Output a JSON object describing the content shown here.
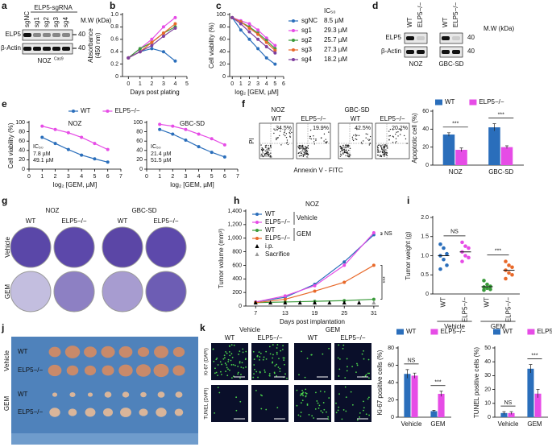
{
  "chart_data": [
    {
      "type": "line",
      "xlabel": "Days post plating",
      "ylabel": [
        "Absorbance",
        "(450 nm)"
      ],
      "x": [
        0,
        1,
        2,
        3,
        4
      ],
      "xlim": [
        -0.5,
        5
      ],
      "xticks": [
        0,
        1,
        2,
        3,
        4,
        5
      ],
      "ylim": [
        0,
        1
      ],
      "yticks": [
        0,
        0.2,
        0.4,
        0.6,
        0.8,
        {
          "value": 1,
          "label": "1.0"
        }
      ],
      "series": [
        {
          "color": "#2a6ebb",
          "values": [
            0.3,
            0.4,
            0.45,
            0.4,
            0.25
          ]
        },
        {
          "color": "#e64ce6",
          "values": [
            0.3,
            0.45,
            0.6,
            0.8,
            0.95
          ]
        },
        {
          "color": "#3a9a3a",
          "values": [
            0.3,
            0.45,
            0.55,
            0.7,
            0.8
          ]
        },
        {
          "color": "#e8692a",
          "values": [
            0.3,
            0.4,
            0.55,
            0.7,
            0.85
          ]
        },
        {
          "color": "#7e3f9e",
          "values": [
            0.3,
            0.4,
            0.5,
            0.65,
            0.78
          ]
        }
      ]
    },
    {
      "type": "line",
      "xlabel": "log₂ [GEM, µM]",
      "ylabel": [
        "Cell viability (%)"
      ],
      "legend_title": "IC₅₀",
      "x": [
        0,
        1,
        2,
        3,
        4,
        5
      ],
      "xlim": [
        -0.3,
        6
      ],
      "xticks": [
        0,
        1,
        2,
        3,
        4,
        5,
        6
      ],
      "ylim": [
        0,
        100
      ],
      "yticks": [
        0,
        20,
        40,
        60,
        80,
        100
      ],
      "series": [
        {
          "name": "sgNC",
          "ic50": "8.5 µM",
          "color": "#2a6ebb",
          "values": [
            95,
            75,
            60,
            45,
            30,
            20
          ]
        },
        {
          "name": "sg1",
          "ic50": "29.3 µM",
          "color": "#e64ce6",
          "values": [
            95,
            90,
            85,
            75,
            62,
            50
          ]
        },
        {
          "name": "sg2",
          "ic50": "25.7 µM",
          "color": "#3a9a3a",
          "values": [
            95,
            88,
            80,
            70,
            58,
            45
          ]
        },
        {
          "name": "sg3",
          "ic50": "27.3 µM",
          "color": "#e8692a",
          "values": [
            95,
            88,
            78,
            68,
            55,
            42
          ]
        },
        {
          "name": "sg4",
          "ic50": "18.2 µM",
          "color": "#7e3f9e",
          "values": [
            95,
            85,
            72,
            60,
            48,
            38
          ]
        }
      ]
    },
    {
      "type": "line",
      "title": "NOZ",
      "xlabel": "log₂ [GEM, µM]",
      "ylabel": [
        "Cell viability (%)"
      ],
      "legend_title": "IC₅₀",
      "x": [
        1,
        2,
        3,
        4,
        5,
        6
      ],
      "xlim": [
        0,
        7
      ],
      "xticks": [
        0,
        1,
        2,
        3,
        4,
        5,
        6,
        7
      ],
      "ylim": [
        0,
        100
      ],
      "yticks": [
        0,
        20,
        40,
        60,
        80,
        100
      ],
      "series": [
        {
          "name": "WT",
          "ic50": "7.8 µM",
          "color": "#2a6ebb",
          "values": [
            68,
            55,
            42,
            30,
            22,
            15
          ]
        },
        {
          "name": "ELP5−/−",
          "ic50": "49.1 µM",
          "color": "#e64ce6",
          "values": [
            92,
            85,
            78,
            68,
            55,
            42
          ]
        }
      ]
    },
    {
      "type": "line",
      "title": "GBC-SD",
      "xlabel": "log₂ [GEM, µM]",
      "legend_title": "IC₅₀",
      "x": [
        1,
        2,
        3,
        4,
        5,
        6
      ],
      "xlim": [
        0,
        7
      ],
      "xticks": [
        0,
        1,
        2,
        3,
        4,
        5,
        6,
        7
      ],
      "ylim": [
        0,
        100
      ],
      "yticks": [
        0,
        20,
        40,
        60,
        80,
        100
      ],
      "series": [
        {
          "ic50": "21.4 µM",
          "color": "#2a6ebb",
          "values": [
            85,
            75,
            62,
            48,
            36,
            26
          ]
        },
        {
          "ic50": "51.5 µM",
          "color": "#e64ce6",
          "values": [
            96,
            92,
            85,
            75,
            65,
            52
          ]
        }
      ]
    },
    {
      "type": "bar",
      "ylabel": [
        "Apoptotic cell (%)"
      ],
      "categories": [
        "NOZ",
        "GBC-SD"
      ],
      "ylim": [
        0,
        60
      ],
      "yticks": [
        0,
        20,
        40,
        60
      ],
      "significance": [
        "***",
        "***"
      ],
      "series": [
        {
          "name": "WT",
          "color": "#2a6ebb",
          "values": [
            34,
            42
          ],
          "errors": [
            2,
            4
          ]
        },
        {
          "name": "ELP5−/−",
          "color": "#e64ce6",
          "values": [
            17,
            20
          ],
          "errors": [
            2,
            1.5
          ]
        }
      ]
    },
    {
      "type": "line",
      "subtitle": "NOZ",
      "xlabel": "Days post implantation",
      "ylabel": [
        "Tumor volume (mm³)"
      ],
      "x": [
        7,
        13,
        19,
        25,
        31
      ],
      "xlim": [
        5,
        32
      ],
      "xticks": [
        7,
        13,
        19,
        25,
        31
      ],
      "ylim": [
        0,
        1400
      ],
      "yticks": [
        0,
        200,
        400,
        600,
        800,
        {
          "value": 1000,
          "label": "1,000"
        },
        {
          "value": 1200,
          "label": "1,200"
        },
        {
          "value": 1400,
          "label": "1,400"
        }
      ],
      "legend_groups": [
        "Vehicle",
        "GEM"
      ],
      "ip_label": "i.p.",
      "sacrifice_label": "Sacrifice",
      "ip_days": [
        7,
        10,
        13,
        16,
        19,
        22,
        25,
        28
      ],
      "sacrifice_day": 31,
      "annotations": [
        "NS",
        "***"
      ],
      "series": [
        {
          "name": "WT",
          "color": "#2a6ebb",
          "values": [
            60,
            130,
            320,
            650,
            1050
          ]
        },
        {
          "name": "ELP5−/−",
          "color": "#e64ce6",
          "values": [
            60,
            150,
            300,
            600,
            1080
          ]
        },
        {
          "name": "WT",
          "color": "#3a9a3a",
          "values": [
            50,
            60,
            70,
            80,
            100
          ]
        },
        {
          "name": "ELP5−/−",
          "color": "#e8692a",
          "values": [
            50,
            100,
            220,
            350,
            600
          ]
        }
      ]
    },
    {
      "type": "dot",
      "ylabel": [
        "Tumor weight (g)"
      ],
      "categories": [
        "WT",
        "ELP5−/−",
        "WT",
        "ELP5−/−"
      ],
      "groups": [
        "Vehicle",
        "GEM"
      ],
      "colors": [
        "#2a6ebb",
        "#e64ce6",
        "#3a9a3a",
        "#e8692a"
      ],
      "ylim": [
        0,
        2
      ],
      "yticks": [
        0,
        0.5,
        {
          "value": 1,
          "label": "1.0"
        },
        1.5,
        {
          "value": 2,
          "label": "2.0"
        }
      ],
      "points": [
        [
          1.3,
          1.2,
          1.05,
          1.0,
          0.9,
          0.75,
          0.65
        ],
        [
          1.35,
          1.25,
          1.2,
          1.1,
          1.0,
          0.95,
          0.85
        ],
        [
          0.35,
          0.25,
          0.2,
          0.18,
          0.15,
          0.12,
          0.1
        ],
        [
          0.85,
          0.75,
          0.7,
          0.62,
          0.55,
          0.5,
          0.4
        ]
      ],
      "means": [
        1.0,
        1.1,
        0.19,
        0.62
      ],
      "significance": [
        "NS",
        "***"
      ]
    },
    {
      "type": "bar",
      "ylabel": [
        "Ki-67 positive cells (%)"
      ],
      "categories": [
        "Vehicle",
        "GEM"
      ],
      "ylim": [
        0,
        80
      ],
      "yticks": [
        0,
        20,
        40,
        60,
        80
      ],
      "significance": [
        "NS",
        "***"
      ],
      "series": [
        {
          "name": "WT",
          "color": "#2a6ebb",
          "values": [
            50,
            7
          ],
          "errors": [
            5,
            1
          ]
        },
        {
          "name": "ELP5−/−",
          "color": "#e64ce6",
          "values": [
            48,
            27
          ],
          "errors": [
            3,
            3
          ]
        }
      ]
    },
    {
      "type": "bar",
      "ylabel": [
        "TUNEL positive cells (%)"
      ],
      "categories": [
        "Vehicle",
        "GEM"
      ],
      "ylim": [
        0,
        50
      ],
      "yticks": [
        0,
        10,
        20,
        30,
        40,
        50
      ],
      "significance": [
        "NS",
        "***"
      ],
      "series": [
        {
          "name": "WT",
          "color": "#2a6ebb",
          "values": [
            3,
            35
          ],
          "errors": [
            1,
            3
          ]
        },
        {
          "name": "ELP5−/−",
          "color": "#e64ce6",
          "values": [
            3,
            17
          ],
          "errors": [
            1,
            3
          ]
        }
      ]
    }
  ],
  "figure": {
    "letters": [
      "a",
      "b",
      "c",
      "d",
      "e",
      "f",
      "g",
      "h",
      "i",
      "j",
      "k"
    ],
    "blot_a": {
      "header": "ELP5-sgRNA",
      "lanes": [
        "sgNC",
        "sg1",
        "sg2",
        "sg3",
        "sg4"
      ],
      "rows": [
        "ELP5",
        "β-Actin"
      ],
      "mw": [
        "40",
        "40"
      ],
      "mw_label": "M.W (kDa)",
      "cell": "NOZ",
      "cell_sup": "Cas9"
    },
    "blot_d": {
      "lanes": [
        "WT",
        "ELP5−/−",
        "WT",
        "ELP5−/−"
      ],
      "rows": [
        "ELP5",
        "β-Actin"
      ],
      "mw": [
        "40",
        "40"
      ],
      "mw_label": "M.W (kDa)",
      "cells": [
        "NOZ",
        "GBC-SD"
      ]
    },
    "flow_f": {
      "cells": [
        "NOZ",
        "GBC-SD"
      ],
      "panels": [
        "WT",
        "ELP5−/−",
        "WT",
        "ELP5−/−"
      ],
      "percents": [
        "34.5%",
        "19.9%",
        "42.5%",
        "20.2%"
      ],
      "ylabel": "PI",
      "xlabel": "Annexin V - FITC"
    },
    "plates_g": {
      "cells": [
        "NOZ",
        "GBC-SD"
      ],
      "cols": [
        "WT",
        "ELP5−/−",
        "WT",
        "ELP5−/−"
      ],
      "rows": [
        "Vehicle",
        "GEM"
      ]
    },
    "photo_j": {
      "rows": [
        "WT",
        "ELP5−/−",
        "WT",
        "ELP5−/−"
      ],
      "groups": [
        "Vehicle",
        "GEM"
      ]
    },
    "images_k": {
      "groups": [
        "Vehicle",
        "GEM"
      ],
      "cols": [
        "WT",
        "ELP5−/−",
        "WT",
        "ELP5−/−"
      ],
      "rows": [
        "Ki-67 (DAPI)",
        "TUNEL (DAPI)"
      ]
    }
  }
}
